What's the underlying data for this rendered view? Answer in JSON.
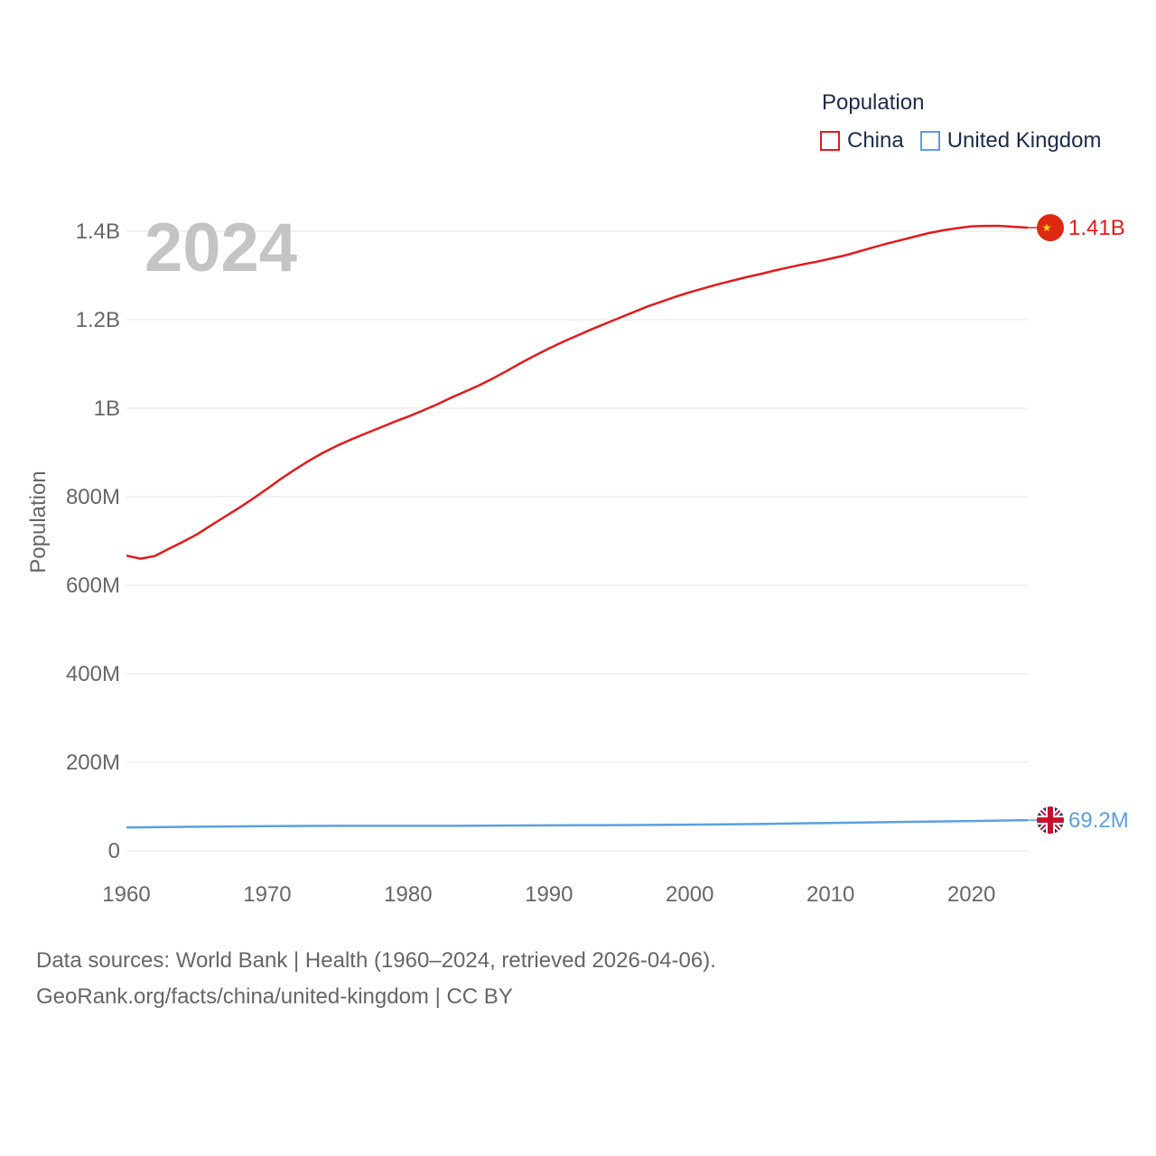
{
  "legend": {
    "title": "Population",
    "items": [
      {
        "label": "China",
        "color": "#e31a1c"
      },
      {
        "label": "United Kingdom",
        "color": "#5aa0e0"
      }
    ]
  },
  "year_watermark": "2024",
  "end_labels": {
    "china": "1.41B",
    "uk": "69.2M"
  },
  "footer": {
    "line1": "Data sources: World Bank | Health (1960–2024, retrieved 2026-04-06).",
    "line2": "GeoRank.org/facts/china/united-kingdom | CC BY"
  },
  "chart_data": {
    "type": "line",
    "title": "",
    "xlabel": "",
    "ylabel": "Population",
    "xlim": [
      1960,
      2024
    ],
    "ylim": [
      0,
      1400000000
    ],
    "x_ticks": [
      1960,
      1970,
      1980,
      1990,
      2000,
      2010,
      2020
    ],
    "y_ticks": [
      {
        "value": 0,
        "label": "0"
      },
      {
        "value": 200000000,
        "label": "200M"
      },
      {
        "value": 400000000,
        "label": "400M"
      },
      {
        "value": 600000000,
        "label": "600M"
      },
      {
        "value": 800000000,
        "label": "800M"
      },
      {
        "value": 1000000000,
        "label": "1B"
      },
      {
        "value": 1200000000,
        "label": "1.2B"
      },
      {
        "value": 1400000000,
        "label": "1.4B"
      }
    ],
    "grid": true,
    "series": [
      {
        "name": "China",
        "color": "#e31a1c",
        "x": [
          1960,
          1961,
          1962,
          1963,
          1964,
          1965,
          1966,
          1967,
          1968,
          1969,
          1970,
          1971,
          1972,
          1973,
          1974,
          1975,
          1976,
          1977,
          1978,
          1979,
          1980,
          1981,
          1982,
          1983,
          1984,
          1985,
          1986,
          1987,
          1988,
          1989,
          1990,
          1991,
          1992,
          1993,
          1994,
          1995,
          1996,
          1997,
          1998,
          1999,
          2000,
          2001,
          2002,
          2003,
          2004,
          2005,
          2006,
          2007,
          2008,
          2009,
          2010,
          2011,
          2012,
          2013,
          2014,
          2015,
          2016,
          2017,
          2018,
          2019,
          2020,
          2021,
          2022,
          2023,
          2024
        ],
        "values": [
          667000000,
          660000000,
          666000000,
          682000000,
          698000000,
          715000000,
          735000000,
          755000000,
          775000000,
          796000000,
          818000000,
          841000000,
          862000000,
          882000000,
          900000000,
          916000000,
          930000000,
          943000000,
          956000000,
          969000000,
          981000000,
          994000000,
          1008000000,
          1023000000,
          1037000000,
          1051000000,
          1067000000,
          1084000000,
          1102000000,
          1119000000,
          1135000000,
          1150000000,
          1164000000,
          1178000000,
          1191000000,
          1204000000,
          1217000000,
          1230000000,
          1241000000,
          1252000000,
          1262000000,
          1271000000,
          1280000000,
          1288000000,
          1296000000,
          1303000000,
          1311000000,
          1318000000,
          1325000000,
          1331000000,
          1338000000,
          1345000000,
          1354000000,
          1363000000,
          1372000000,
          1380000000,
          1388000000,
          1396000000,
          1402000000,
          1407000000,
          1411000000,
          1412000000,
          1412000000,
          1410000000,
          1408000000
        ]
      },
      {
        "name": "United Kingdom",
        "color": "#5aa0e0",
        "x": [
          1960,
          1965,
          1970,
          1975,
          1980,
          1985,
          1990,
          1995,
          2000,
          2005,
          2010,
          2015,
          2020,
          2024
        ],
        "values": [
          52400000,
          54350000,
          55660000,
          56230000,
          56310000,
          56550000,
          57250000,
          58020000,
          58890000,
          60400000,
          62760000,
          65120000,
          67080000,
          69200000
        ]
      }
    ]
  }
}
